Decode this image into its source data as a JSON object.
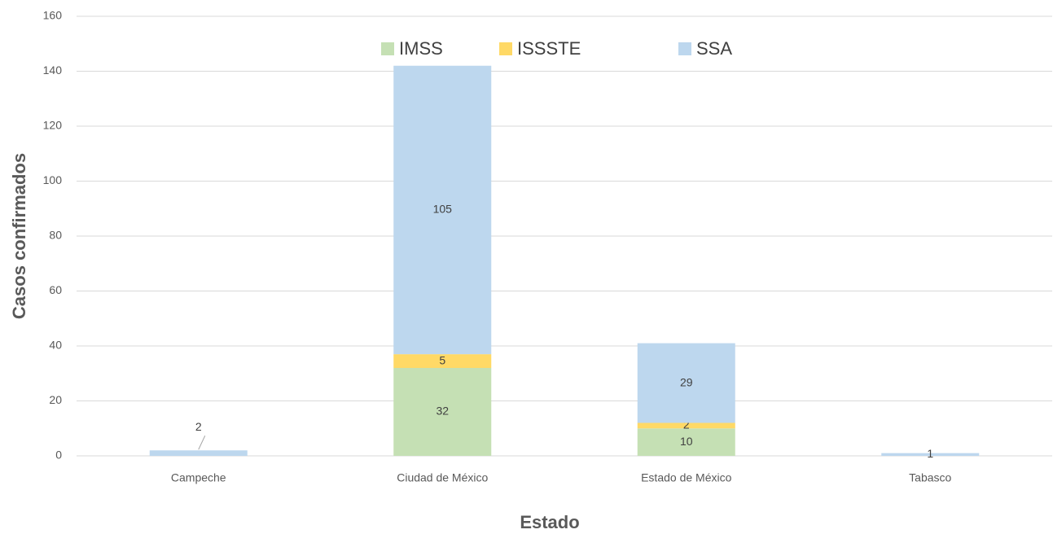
{
  "chart_data": {
    "type": "stacked_bar",
    "categories": [
      "Campeche",
      "Ciudad de México",
      "Estado de México",
      "Tabasco"
    ],
    "series": [
      {
        "name": "IMSS",
        "color": "#c5e0b4",
        "values": [
          null,
          32,
          10,
          null
        ]
      },
      {
        "name": "ISSSTE",
        "color": "#ffd966",
        "values": [
          null,
          5,
          2,
          null
        ]
      },
      {
        "name": "SSA",
        "color": "#bdd7ee",
        "values": [
          2,
          105,
          29,
          1
        ]
      }
    ],
    "xlabel": "Estado",
    "ylabel": "Casos confirmados",
    "ylim": [
      0,
      160
    ],
    "yticks": [
      0,
      20,
      40,
      60,
      80,
      100,
      120,
      140,
      160
    ],
    "grid": true,
    "legend": "top"
  }
}
